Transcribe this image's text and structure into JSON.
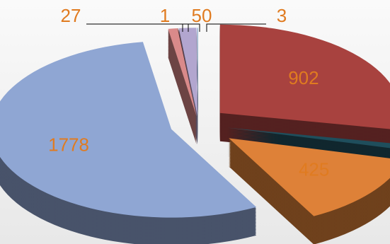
{
  "chart_data": {
    "type": "pie",
    "values": [
      902,
      30,
      425,
      1778,
      27,
      1,
      50,
      3
    ],
    "value_labels": [
      "902",
      null,
      "425",
      "1778",
      "27",
      "1",
      "50",
      "3"
    ],
    "colors": [
      "#a8423f",
      "#1f4e5c",
      "#de8138",
      "#8fa6d3",
      "#d98a8a",
      "#5a2d2a",
      "#b2a6cf",
      "#9fb8d8"
    ]
  }
}
